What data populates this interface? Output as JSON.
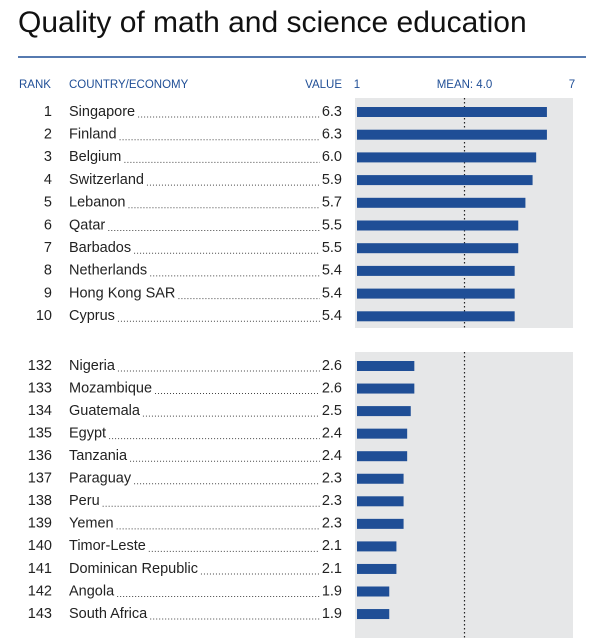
{
  "chart_data": {
    "type": "bar",
    "title": "Quality of math and science education",
    "headers": [
      "RANK",
      "COUNTRY/ECONOMY",
      "VALUE"
    ],
    "color": "#1f4e96",
    "xlim": [
      1,
      7
    ],
    "xticks": [
      1,
      {
        "value": 4,
        "label": "MEAN: 4.0"
      },
      7
    ],
    "groups": [
      {
        "ranks": [
          1,
          2,
          3,
          4,
          5,
          6,
          7,
          8,
          9,
          10
        ],
        "categories": [
          "Singapore",
          "Finland",
          "Belgium",
          "Switzerland",
          "Lebanon",
          "Qatar",
          "Barbados",
          "Netherlands",
          "Hong Kong SAR",
          "Cyprus"
        ],
        "values": [
          6.3,
          6.3,
          6.0,
          5.9,
          5.7,
          5.5,
          5.5,
          5.4,
          5.4,
          5.4
        ],
        "value_labels": [
          "6.3",
          "6.3",
          "6.0",
          "5.9",
          "5.7",
          "5.5",
          "5.5",
          "5.4",
          "5.4",
          "5.4"
        ]
      },
      {
        "ranks": [
          132,
          133,
          134,
          135,
          136,
          137,
          138,
          139,
          140,
          141,
          142,
          143
        ],
        "categories": [
          "Nigeria",
          "Mozambique",
          "Guatemala",
          "Egypt",
          "Tanzania",
          "Paraguay",
          "Peru",
          "Yemen",
          "Timor-Leste",
          "Dominican Republic",
          "Angola",
          "South Africa"
        ],
        "values": [
          2.6,
          2.6,
          2.5,
          2.4,
          2.4,
          2.3,
          2.3,
          2.3,
          2.1,
          2.1,
          1.9,
          1.9
        ],
        "value_labels": [
          "2.6",
          "2.6",
          "2.5",
          "2.4",
          "2.4",
          "2.3",
          "2.3",
          "2.3",
          "2.1",
          "2.1",
          "1.9",
          "1.9"
        ]
      }
    ]
  }
}
